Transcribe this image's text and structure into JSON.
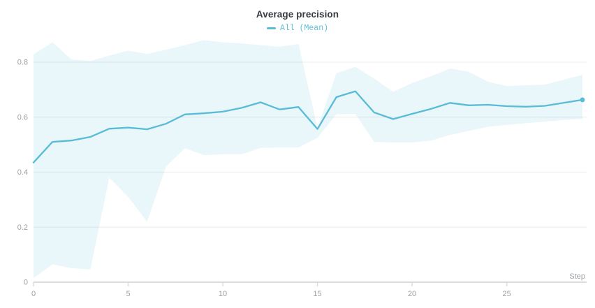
{
  "panel": {
    "title": "Average precision"
  },
  "legend": {
    "label": "All (Mean)"
  },
  "colors": {
    "line": "#58bcd6",
    "band_fill": "rgba(88,188,214,0.13)",
    "grid": "#ececec",
    "axis": "#dcdcdc",
    "tick_text": "#9aa0a4",
    "title_text": "#363a41",
    "legend_text": "#62c1d8"
  },
  "chart_data": {
    "type": "line",
    "title": "Average precision",
    "xlabel": "Step",
    "ylabel": "",
    "xlim": [
      0,
      29
    ],
    "ylim": [
      0,
      0.9
    ],
    "x_ticks": [
      0,
      5,
      10,
      15,
      20,
      25
    ],
    "y_ticks": [
      0,
      0.2,
      0.4,
      0.6,
      0.8
    ],
    "grid": "horizontal",
    "legend_position": "top-center",
    "x": [
      0,
      1,
      2,
      3,
      4,
      5,
      6,
      7,
      8,
      9,
      10,
      11,
      12,
      13,
      14,
      15,
      16,
      17,
      18,
      19,
      20,
      21,
      22,
      23,
      24,
      25,
      26,
      27,
      28,
      29
    ],
    "series": [
      {
        "name": "All (Mean)",
        "values": [
          0.435,
          0.51,
          0.515,
          0.528,
          0.558,
          0.562,
          0.556,
          0.576,
          0.61,
          0.614,
          0.62,
          0.634,
          0.654,
          0.628,
          0.637,
          0.557,
          0.673,
          0.694,
          0.617,
          0.593,
          0.612,
          0.63,
          0.652,
          0.643,
          0.645,
          0.64,
          0.638,
          0.641,
          0.652,
          0.663
        ]
      }
    ],
    "band": {
      "name": "All (Min/Max)",
      "min": [
        0.015,
        0.065,
        0.051,
        0.046,
        0.38,
        0.31,
        0.22,
        0.42,
        0.487,
        0.462,
        0.465,
        0.465,
        0.488,
        0.49,
        0.49,
        0.525,
        0.61,
        0.612,
        0.51,
        0.508,
        0.508,
        0.515,
        0.535,
        0.55,
        0.565,
        0.572,
        0.578,
        0.584,
        0.59,
        0.594
      ],
      "max": [
        0.828,
        0.872,
        0.81,
        0.804,
        0.824,
        0.842,
        0.83,
        0.845,
        0.862,
        0.88,
        0.872,
        0.868,
        0.862,
        0.856,
        0.866,
        0.56,
        0.76,
        0.783,
        0.74,
        0.692,
        0.724,
        0.749,
        0.777,
        0.765,
        0.729,
        0.713,
        0.716,
        0.718,
        0.736,
        0.754
      ]
    },
    "end_marker": {
      "x": 29,
      "y": 0.663
    }
  }
}
